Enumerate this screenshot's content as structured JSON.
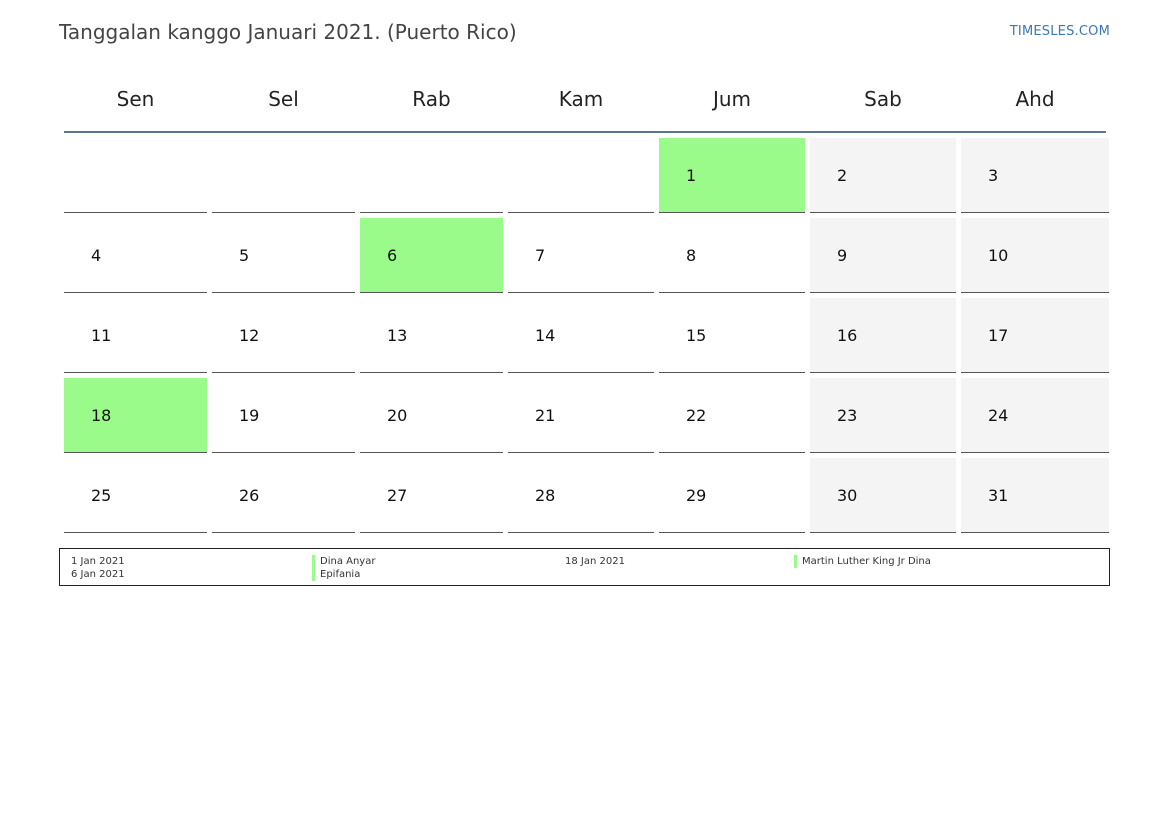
{
  "header": {
    "title": "Tanggalan kanggo Januari 2021. (Puerto Rico)",
    "brand": "TIMESLES.COM"
  },
  "colors": {
    "holiday": "#9afa8a",
    "weekend": "#f4f4f4",
    "header_rule": "#5a7596",
    "brand": "#3b78b5"
  },
  "calendar": {
    "weekdays": [
      "Sen",
      "Sel",
      "Rab",
      "Kam",
      "Jum",
      "Sab",
      "Ahd"
    ],
    "weeks": [
      [
        "",
        "",
        "",
        "",
        "1",
        "2",
        "3"
      ],
      [
        "4",
        "5",
        "6",
        "7",
        "8",
        "9",
        "10"
      ],
      [
        "11",
        "12",
        "13",
        "14",
        "15",
        "16",
        "17"
      ],
      [
        "18",
        "19",
        "20",
        "21",
        "22",
        "23",
        "24"
      ],
      [
        "25",
        "26",
        "27",
        "28",
        "29",
        "30",
        "31"
      ]
    ],
    "holiday_days": [
      "1",
      "6",
      "18"
    ]
  },
  "legend": {
    "left": [
      {
        "date": "1 Jan 2021",
        "name": "Dina Anyar"
      },
      {
        "date": "6 Jan 2021",
        "name": "Epifania"
      }
    ],
    "right": [
      {
        "date": "18 Jan 2021",
        "name": "Martin Luther King Jr Dina"
      }
    ]
  }
}
